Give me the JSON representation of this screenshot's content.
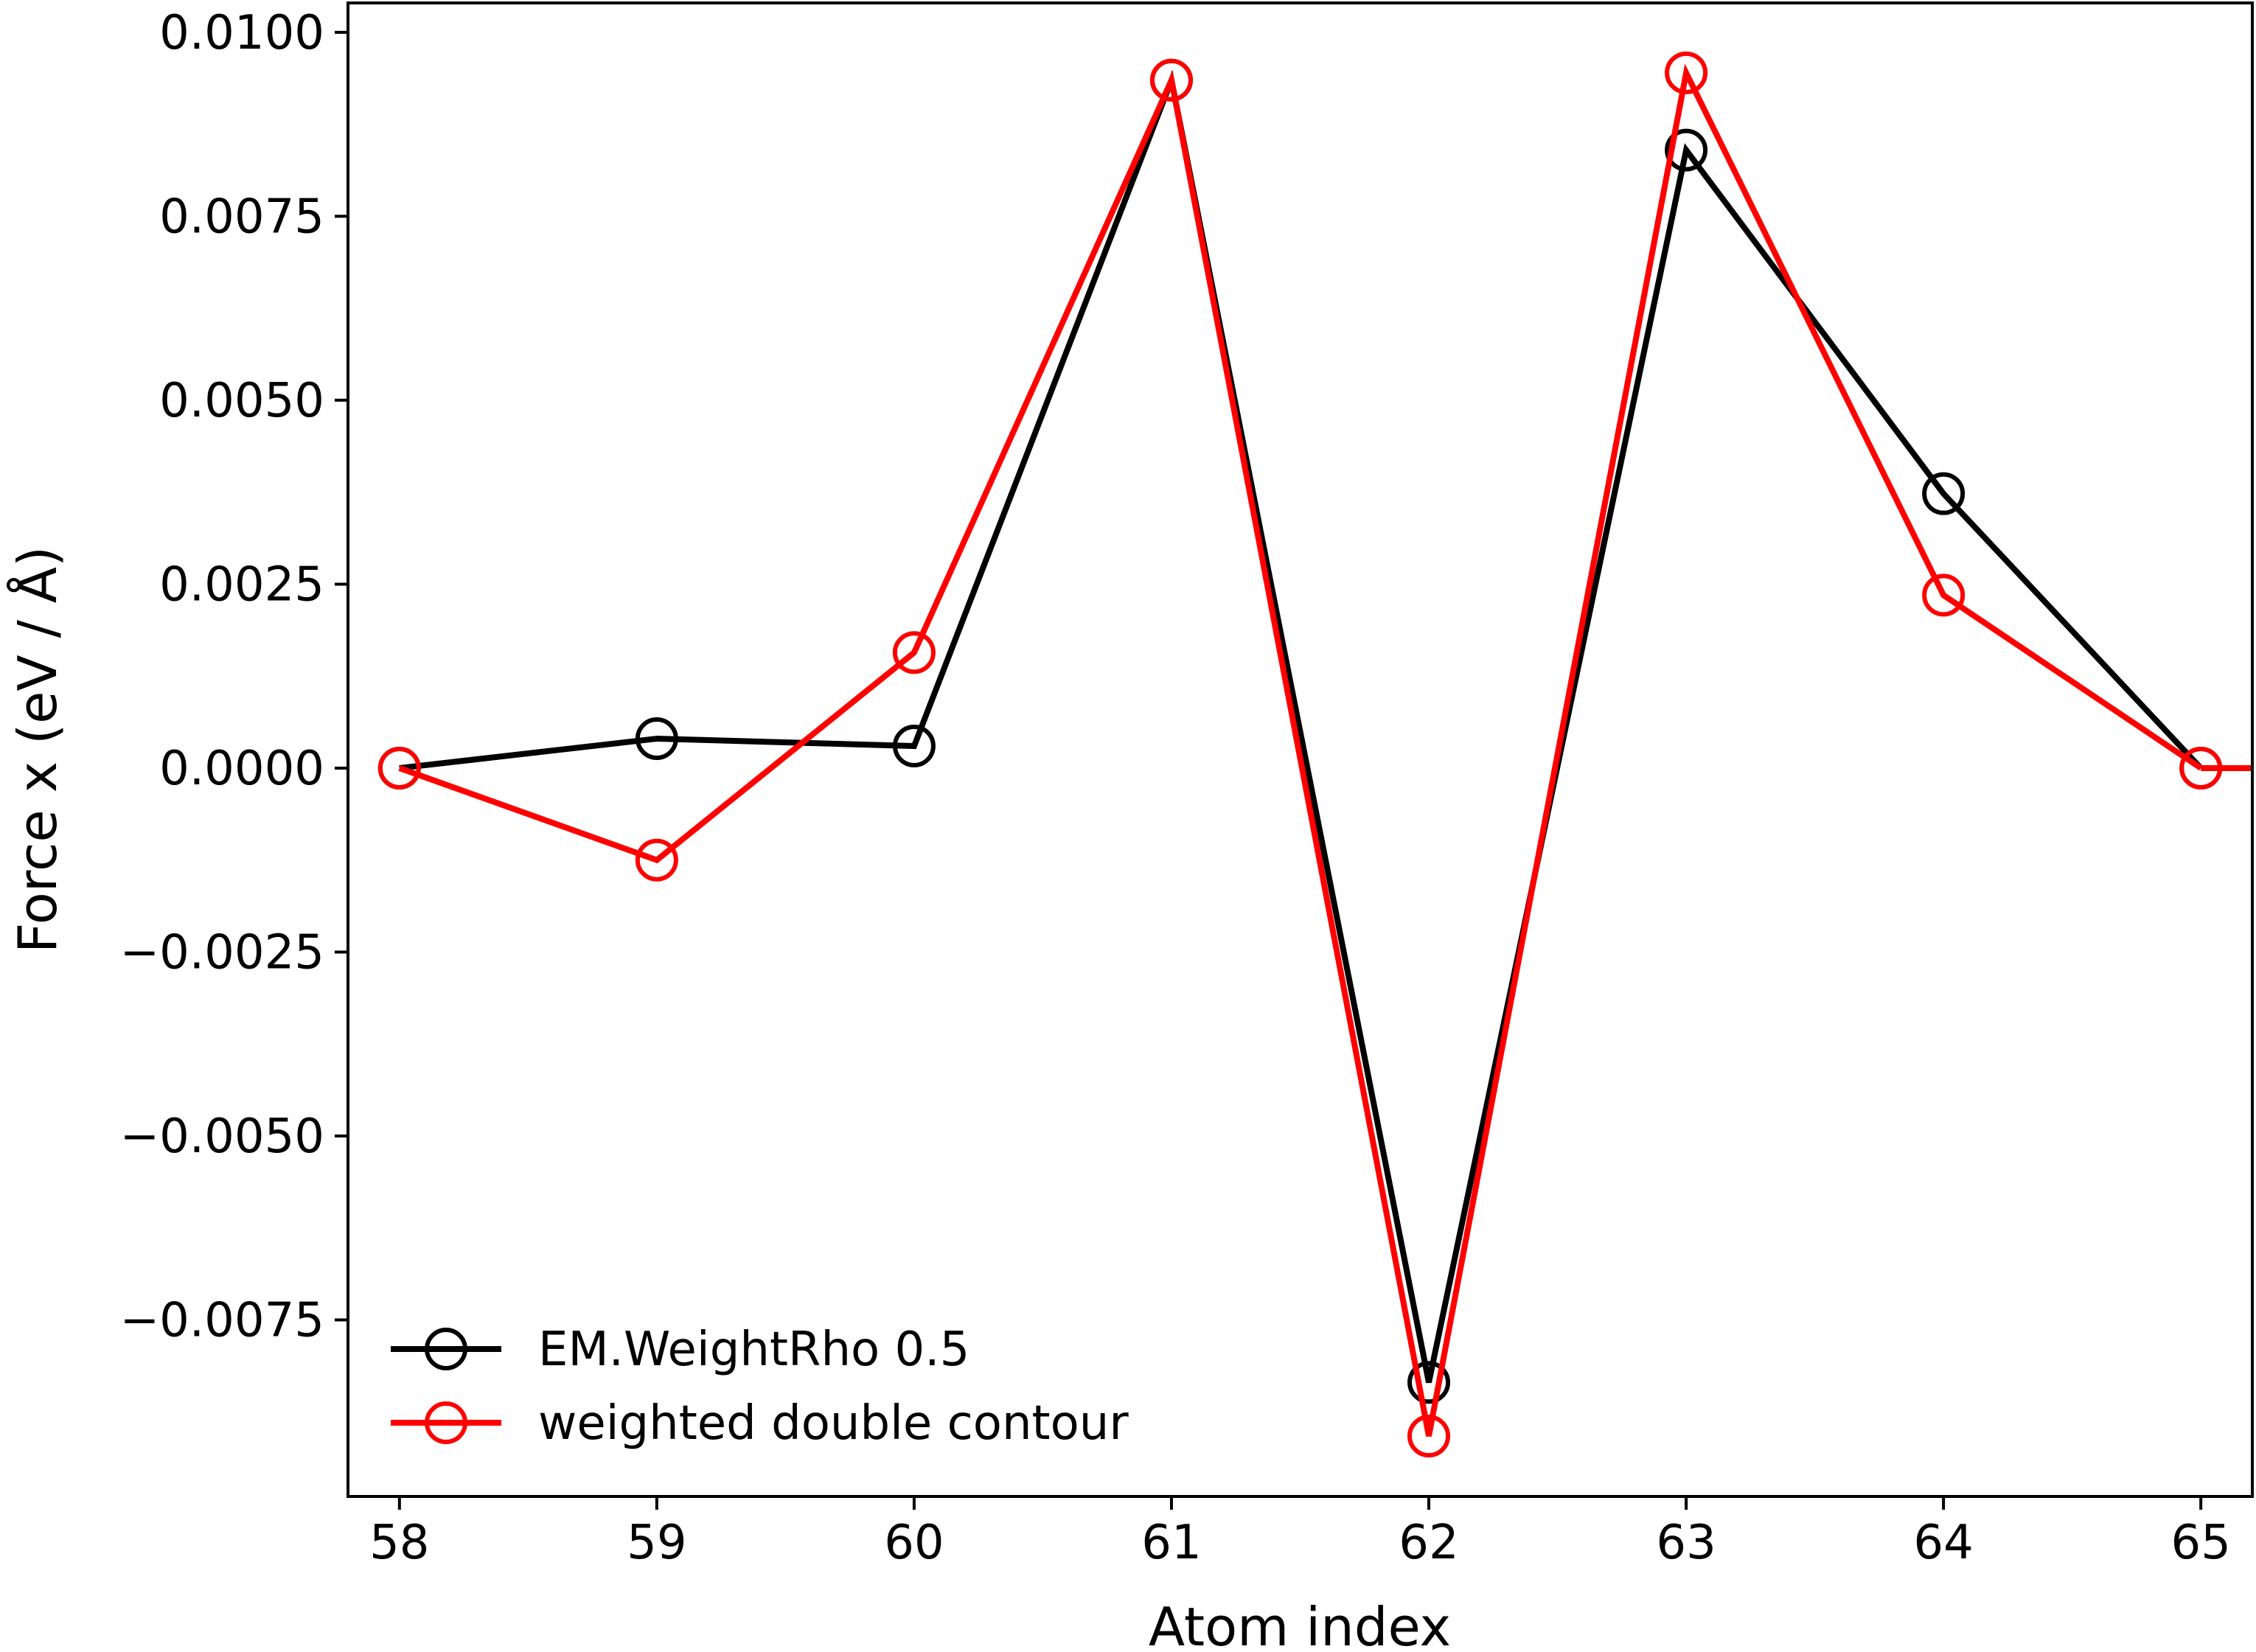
{
  "chart_data": {
    "type": "line",
    "title": "",
    "xlabel": "Atom index",
    "ylabel": "Force x (eV / Å)",
    "xlim": [
      57.8,
      65.2
    ],
    "ylim": [
      -0.0099,
      0.0104
    ],
    "xticks": [
      58,
      59,
      60,
      61,
      62,
      63,
      64,
      65
    ],
    "xtick_labels": [
      "58",
      "59",
      "60",
      "61",
      "62",
      "63",
      "64",
      "65"
    ],
    "yticks": [
      0.01,
      0.0075,
      0.005,
      0.0025,
      0.0,
      -0.0025,
      -0.005,
      -0.0075
    ],
    "ytick_labels": [
      "0.0100",
      "0.0075",
      "0.0050",
      "0.0025",
      "0.0000",
      "−0.0025",
      "−0.0050",
      "−0.0075"
    ],
    "grid": false,
    "legend_position": "lower-left",
    "x": [
      58,
      59,
      60,
      61,
      62,
      63,
      64,
      65
    ],
    "series": [
      {
        "name": "EM.WeightRho 0.5",
        "color": "#000000",
        "marker": "open-circle",
        "values": [
          0.0,
          0.0004,
          0.0003,
          0.00935,
          -0.00835,
          0.0084,
          0.00373,
          0.0
        ]
      },
      {
        "name": "weighted double contour",
        "color": "#ff0000",
        "marker": "open-circle",
        "values": [
          0.0,
          -0.00125,
          0.00157,
          0.00935,
          -0.00908,
          0.00945,
          0.00235,
          0.0
        ]
      }
    ]
  }
}
